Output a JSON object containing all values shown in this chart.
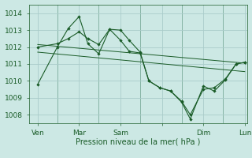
{
  "title": "",
  "xlabel": "Pression niveau de la mer( hPa )",
  "bg_color": "#cce8e4",
  "grid_color": "#aaccca",
  "line_color": "#1a5c28",
  "xlim": [
    0,
    100
  ],
  "ylim": [
    1007.5,
    1014.5
  ],
  "yticks": [
    1008,
    1009,
    1010,
    1011,
    1012,
    1013,
    1014
  ],
  "xtick_positions": [
    4,
    23,
    42,
    61,
    80,
    99
  ],
  "xtick_labels": [
    "Ven",
    "Mar",
    "Sam",
    "",
    "Dim",
    "Lun"
  ],
  "vlines": [
    13,
    32,
    51,
    70,
    89
  ],
  "series1": {
    "x": [
      4,
      13,
      18,
      23,
      27,
      32,
      37,
      42,
      46,
      51,
      55,
      60,
      65,
      70,
      74,
      80,
      85,
      90,
      95,
      99
    ],
    "y": [
      1009.8,
      1012.0,
      1013.1,
      1013.8,
      1012.2,
      1011.6,
      1013.05,
      1013.0,
      1012.4,
      1011.7,
      1010.0,
      1009.6,
      1009.4,
      1008.75,
      1007.75,
      1009.7,
      1009.4,
      1010.05,
      1011.0,
      1011.1
    ]
  },
  "series2": {
    "x": [
      4,
      13,
      18,
      23,
      27,
      32,
      37,
      42,
      46,
      51,
      55,
      60,
      65,
      70,
      74,
      80,
      85,
      90,
      95,
      99
    ],
    "y": [
      1012.0,
      1012.2,
      1012.5,
      1012.9,
      1012.5,
      1012.15,
      1013.05,
      1012.4,
      1011.75,
      1011.65,
      1010.0,
      1009.6,
      1009.4,
      1008.8,
      1008.0,
      1009.5,
      1009.6,
      1010.1,
      1011.0,
      1011.1
    ]
  },
  "trend1": {
    "x": [
      4,
      99
    ],
    "y": [
      1012.15,
      1011.05
    ]
  },
  "trend2": {
    "x": [
      4,
      99
    ],
    "y": [
      1011.7,
      1010.55
    ]
  }
}
